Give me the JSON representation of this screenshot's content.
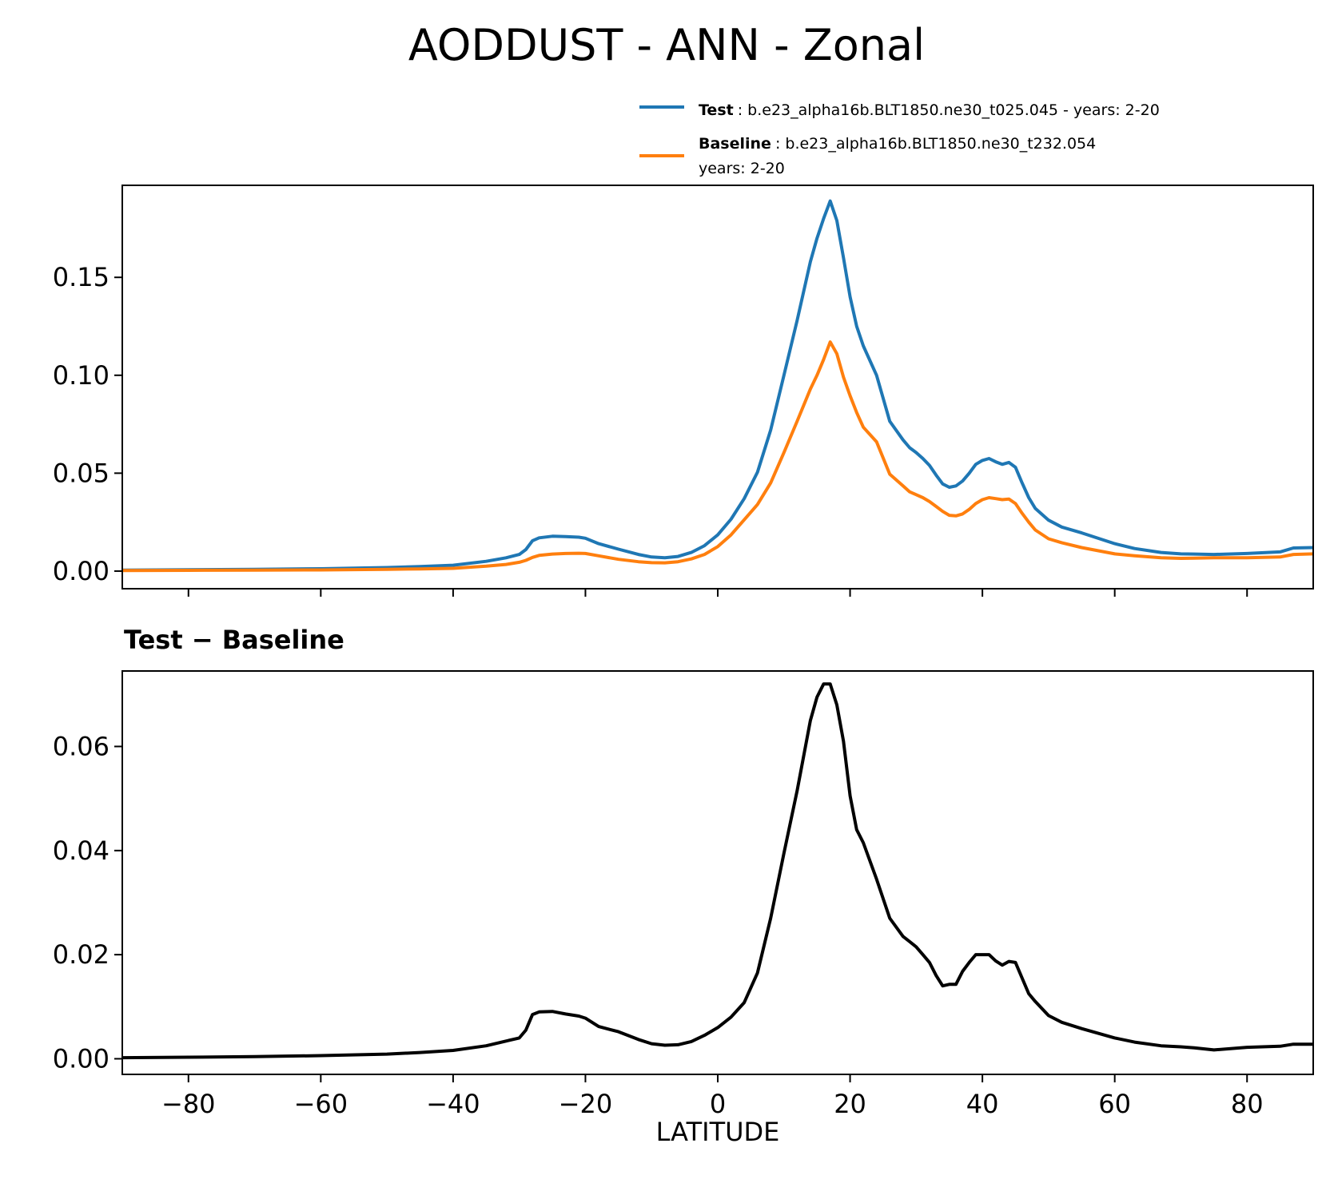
{
  "title": "AODDUST - ANN - Zonal",
  "colors": {
    "test": "#1f77b4",
    "baseline": "#ff7f0e",
    "diff": "#000000"
  },
  "legend": {
    "test_label": "Test",
    "test_text": ": b.e23_alpha16b.BLT1850.ne30_t025.045 - years: 2-20",
    "baseline_label": "Baseline",
    "baseline_text": ": b.e23_alpha16b.BLT1850.ne30_t232.054",
    "baseline_text2": "years: 2-20"
  },
  "chart_data": [
    {
      "type": "line",
      "xlim": [
        -90,
        90
      ],
      "ylim": [
        -0.009,
        0.197
      ],
      "x_ticks": [
        -80,
        -60,
        -40,
        -20,
        0,
        20,
        40,
        60,
        80
      ],
      "y_ticks": [
        "0.00",
        "0.05",
        "0.10",
        "0.15"
      ],
      "grid": false,
      "legend_position": "above-right",
      "series": [
        {
          "name": "Test",
          "x": [
            -90,
            -80,
            -70,
            -60,
            -50,
            -45,
            -40,
            -35,
            -32,
            -30,
            -29,
            -28,
            -27,
            -25,
            -23,
            -21,
            -20,
            -18,
            -15,
            -12,
            -10,
            -8,
            -6,
            -4,
            -2,
            0,
            2,
            4,
            6,
            8,
            10,
            12,
            14,
            15,
            16,
            17,
            18,
            19,
            20,
            21,
            22,
            24,
            26,
            28,
            29,
            30,
            31,
            32,
            33,
            34,
            35,
            36,
            37,
            38,
            39,
            40,
            41,
            42,
            43,
            44,
            45,
            46,
            47,
            48,
            50,
            52,
            55,
            60,
            63,
            67,
            70,
            72,
            75,
            80,
            85,
            87,
            90
          ],
          "values": [
            0.0005,
            0.0007,
            0.0009,
            0.0012,
            0.0018,
            0.0023,
            0.003,
            0.005,
            0.0068,
            0.0085,
            0.011,
            0.0155,
            0.017,
            0.0178,
            0.0176,
            0.0173,
            0.0168,
            0.014,
            0.0112,
            0.0085,
            0.0072,
            0.0068,
            0.0075,
            0.0095,
            0.013,
            0.0185,
            0.0265,
            0.037,
            0.0505,
            0.072,
            0.1,
            0.128,
            0.158,
            0.17,
            0.18,
            0.189,
            0.179,
            0.16,
            0.14,
            0.125,
            0.115,
            0.1,
            0.0765,
            0.067,
            0.063,
            0.0605,
            0.0575,
            0.054,
            0.049,
            0.0445,
            0.0428,
            0.0435,
            0.046,
            0.05,
            0.0545,
            0.0565,
            0.0575,
            0.0558,
            0.0545,
            0.0555,
            0.053,
            0.045,
            0.0375,
            0.032,
            0.026,
            0.0225,
            0.0195,
            0.014,
            0.0115,
            0.0095,
            0.0088,
            0.0087,
            0.0085,
            0.009,
            0.0098,
            0.0118,
            0.012
          ]
        },
        {
          "name": "Baseline",
          "x": [
            -90,
            -80,
            -70,
            -60,
            -50,
            -45,
            -40,
            -35,
            -32,
            -30,
            -29,
            -28,
            -27,
            -25,
            -23,
            -21,
            -20,
            -18,
            -15,
            -12,
            -10,
            -8,
            -6,
            -4,
            -2,
            0,
            2,
            4,
            6,
            8,
            10,
            12,
            14,
            15,
            16,
            17,
            18,
            19,
            20,
            21,
            22,
            24,
            26,
            28,
            29,
            30,
            31,
            32,
            33,
            34,
            35,
            36,
            37,
            38,
            39,
            40,
            41,
            42,
            43,
            44,
            45,
            46,
            47,
            48,
            50,
            52,
            55,
            60,
            63,
            67,
            70,
            72,
            75,
            80,
            85,
            87,
            90
          ],
          "values": [
            0.0003,
            0.0004,
            0.0005,
            0.0006,
            0.0009,
            0.0011,
            0.0014,
            0.0025,
            0.0034,
            0.0045,
            0.0055,
            0.007,
            0.008,
            0.0087,
            0.009,
            0.0091,
            0.009,
            0.0078,
            0.006,
            0.0048,
            0.0043,
            0.0042,
            0.0048,
            0.0062,
            0.0085,
            0.0125,
            0.0185,
            0.0262,
            0.034,
            0.045,
            0.0605,
            0.0765,
            0.093,
            0.1,
            0.108,
            0.117,
            0.111,
            0.099,
            0.0895,
            0.081,
            0.0735,
            0.066,
            0.0495,
            0.0435,
            0.0405,
            0.039,
            0.0375,
            0.0355,
            0.033,
            0.0305,
            0.0285,
            0.0282,
            0.0292,
            0.0315,
            0.0345,
            0.0365,
            0.0375,
            0.037,
            0.0365,
            0.0368,
            0.0345,
            0.0295,
            0.025,
            0.021,
            0.0165,
            0.0145,
            0.012,
            0.0088,
            0.0078,
            0.0068,
            0.0065,
            0.0066,
            0.0068,
            0.0068,
            0.0072,
            0.0085,
            0.0088
          ]
        }
      ]
    },
    {
      "type": "line",
      "title": "Test − Baseline",
      "xlabel": "LATITUDE",
      "xlim": [
        -90,
        90
      ],
      "ylim": [
        -0.003,
        0.0745
      ],
      "x_ticks": [
        -80,
        -60,
        -40,
        -20,
        0,
        20,
        40,
        60,
        80
      ],
      "y_ticks": [
        "0.00",
        "0.02",
        "0.04",
        "0.06"
      ],
      "grid": false,
      "series": [
        {
          "x": [
            -90,
            -80,
            -70,
            -60,
            -50,
            -45,
            -40,
            -35,
            -32,
            -30,
            -29,
            -28,
            -27,
            -25,
            -23,
            -21,
            -20,
            -18,
            -15,
            -12,
            -10,
            -8,
            -6,
            -4,
            -2,
            0,
            2,
            4,
            6,
            8,
            10,
            12,
            14,
            15,
            16,
            17,
            18,
            19,
            20,
            21,
            22,
            24,
            26,
            28,
            29,
            30,
            31,
            32,
            33,
            34,
            35,
            36,
            37,
            38,
            39,
            40,
            41,
            42,
            43,
            44,
            45,
            46,
            47,
            48,
            50,
            52,
            55,
            60,
            63,
            67,
            70,
            72,
            75,
            80,
            85,
            87,
            90
          ],
          "values": [
            0.0002,
            0.0003,
            0.0004,
            0.0006,
            0.0009,
            0.0012,
            0.0016,
            0.0025,
            0.0034,
            0.004,
            0.0055,
            0.0085,
            0.009,
            0.0091,
            0.0086,
            0.0082,
            0.0078,
            0.0062,
            0.0052,
            0.0037,
            0.0029,
            0.0026,
            0.0027,
            0.0033,
            0.0045,
            0.006,
            0.008,
            0.0108,
            0.0165,
            0.027,
            0.0395,
            0.0515,
            0.065,
            0.0695,
            0.072,
            0.072,
            0.068,
            0.061,
            0.0505,
            0.044,
            0.0415,
            0.0345,
            0.027,
            0.0235,
            0.0225,
            0.0215,
            0.02,
            0.0185,
            0.016,
            0.014,
            0.0143,
            0.0143,
            0.0168,
            0.0185,
            0.02,
            0.02,
            0.02,
            0.0188,
            0.018,
            0.0187,
            0.0185,
            0.0155,
            0.0125,
            0.011,
            0.0083,
            0.007,
            0.0058,
            0.004,
            0.0032,
            0.0025,
            0.0023,
            0.0021,
            0.0017,
            0.0022,
            0.0024,
            0.0028,
            0.0028
          ]
        }
      ]
    }
  ]
}
